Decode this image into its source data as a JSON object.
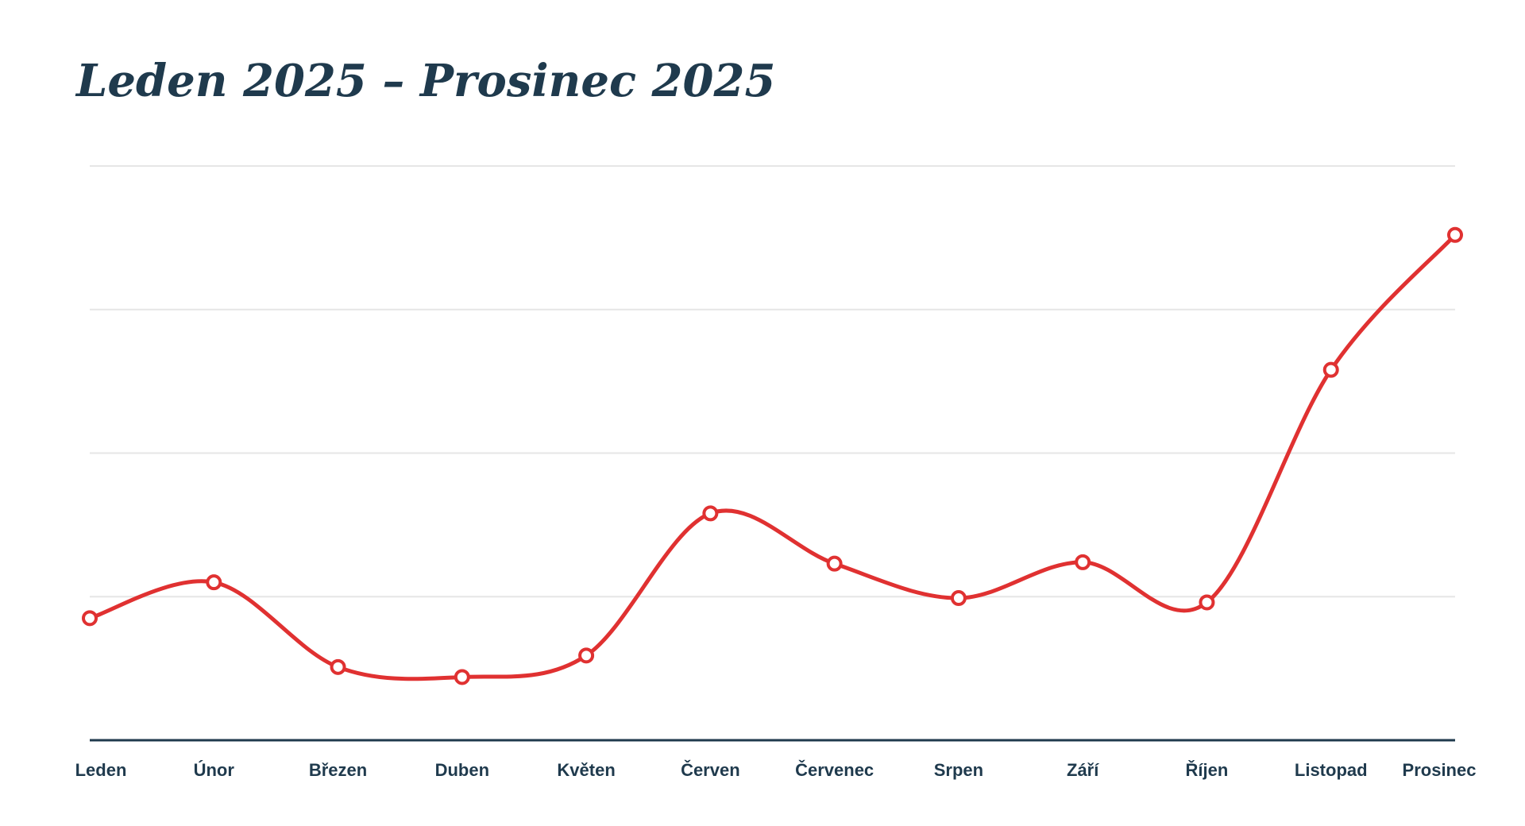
{
  "chart_data": {
    "type": "line",
    "title": "Leden 2025 – Prosinec 2025",
    "xlabel": "",
    "ylabel": "",
    "categories": [
      "Leden",
      "Únor",
      "Březen",
      "Duben",
      "Květen",
      "Červen",
      "Červenec",
      "Srpen",
      "Září",
      "Říjen",
      "Listopad",
      "Prosinec"
    ],
    "series": [
      {
        "values": [
          0.85,
          1.1,
          0.51,
          0.44,
          0.59,
          1.58,
          1.23,
          0.99,
          1.24,
          0.96,
          2.58,
          3.52
        ]
      }
    ],
    "ylim": [
      0,
      4
    ],
    "grid": true,
    "legend": "none",
    "colors": {
      "line": "#e03131",
      "marker_fill": "#ffffff",
      "grid": "#e6e6e6",
      "axis": "#1f3a4d",
      "text": "#1f3a4d"
    }
  }
}
